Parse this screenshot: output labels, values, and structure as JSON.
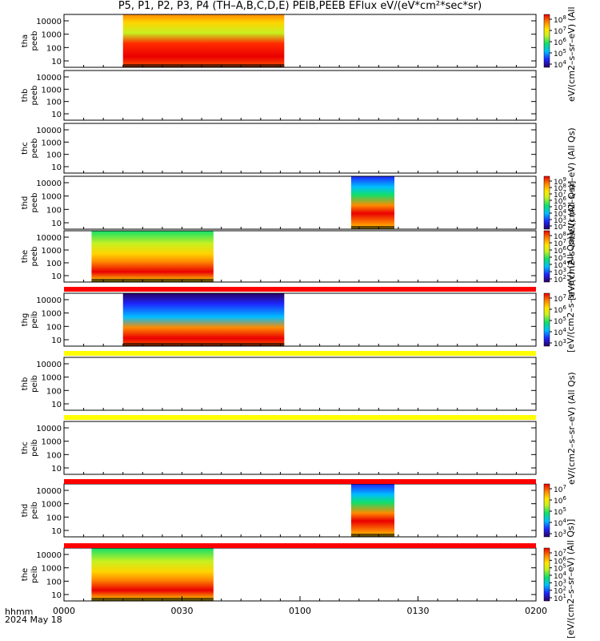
{
  "title": "P5, P1, P2, P3, P4 (TH–A,B,C,D,E) PEIB,PEEB EFlux eV/(eV*cm²*sec*sr)",
  "units_labels": [
    "eV/(cm2–s–sr–eV) (All",
    "[eV/(cm2–s–sr–eV) (All Qs)]",
    "eV/(cm2–s–sr–eV) (All Qs)",
    "[eV/(cm2–s–sr–eV) (All Qs)]",
    "eV/(cm2–s–sr–eV) (All Qs)",
    "[eV/(cm2–s–sr–eV) (All Qs)]"
  ],
  "time_axis": {
    "label": "hhmm",
    "date": "2024 May 18",
    "ticks": [
      "0000",
      "0030",
      "0100",
      "0130",
      "0200"
    ]
  },
  "colors": {
    "quality_bar_red": "#ff0000",
    "quality_bar_yellow": "#ffff00",
    "frame": "#000000"
  },
  "chart_data": [
    {
      "type": "heatmap",
      "panel": "tha peeb",
      "ylabel_top": "tha",
      "ylabel_bottom": "peeb",
      "yticks": [
        "10000",
        "1000",
        "100",
        "10"
      ],
      "data_windows": [
        [
          "0015",
          "0056"
        ]
      ],
      "colorbar_ticks": [
        "10^8",
        "10^7",
        "10^6",
        "10^5",
        "10^4"
      ]
    },
    {
      "type": "heatmap",
      "panel": "thb peeb",
      "ylabel_top": "thb",
      "ylabel_bottom": "peeb",
      "yticks": [
        "10000",
        "1000",
        "100",
        "10"
      ],
      "data_windows": []
    },
    {
      "type": "heatmap",
      "panel": "thc peeb",
      "ylabel_top": "thc",
      "ylabel_bottom": "peeb",
      "yticks": [
        "10000",
        "1000",
        "100",
        "10"
      ],
      "data_windows": []
    },
    {
      "type": "heatmap",
      "panel": "thd peeb",
      "ylabel_top": "thd",
      "ylabel_bottom": "peeb",
      "yticks": [
        "10000",
        "1000",
        "100",
        "10"
      ],
      "data_windows": [
        [
          "0113",
          "0124"
        ]
      ],
      "colorbar_ticks": [
        "10^9",
        "10^8",
        "10^7",
        "10^6",
        "10^5",
        "10^4",
        "10^3",
        "10^2"
      ]
    },
    {
      "type": "heatmap",
      "panel": "the peeb",
      "ylabel_top": "the",
      "ylabel_bottom": "peeb",
      "yticks": [
        "10000",
        "1000",
        "100",
        "10"
      ],
      "data_windows": [
        [
          "0007",
          "0038"
        ]
      ],
      "colorbar_ticks": [
        "10^8",
        "10^7",
        "10^6",
        "10^5",
        "10^4",
        "10^3",
        "10^2"
      ]
    },
    {
      "type": "heatmap",
      "panel": "thg peib",
      "ylabel_top": "thg",
      "ylabel_bottom": "peib",
      "yticks": [
        "10000",
        "1000",
        "100",
        "10"
      ],
      "data_windows": [
        [
          "0015",
          "0056"
        ]
      ],
      "colorbar_ticks": [
        "10^7",
        "10^6",
        "10^5",
        "10^4",
        "10^3"
      ]
    },
    {
      "type": "heatmap",
      "panel": "thb peib",
      "ylabel_top": "thb",
      "ylabel_bottom": "peib",
      "yticks": [
        "10000",
        "1000",
        "100",
        "10"
      ],
      "data_windows": []
    },
    {
      "type": "heatmap",
      "panel": "thc peib",
      "ylabel_top": "thc",
      "ylabel_bottom": "peib",
      "yticks": [
        "10000",
        "1000",
        "100",
        "10"
      ],
      "data_windows": []
    },
    {
      "type": "heatmap",
      "panel": "thd peib",
      "ylabel_top": "thd",
      "ylabel_bottom": "peib",
      "yticks": [
        "10000",
        "1000",
        "100",
        "10"
      ],
      "data_windows": [
        [
          "0113",
          "0124"
        ]
      ],
      "colorbar_ticks": [
        "10^7",
        "10^6",
        "10^5",
        "10^4",
        "10^3"
      ]
    },
    {
      "type": "heatmap",
      "panel": "the peib",
      "ylabel_top": "the",
      "ylabel_bottom": "peib",
      "yticks": [
        "10000",
        "1000",
        "100",
        "10"
      ],
      "data_windows": [
        [
          "0007",
          "0038"
        ]
      ],
      "colorbar_ticks": [
        "10^7",
        "10^6",
        "10^5",
        "10^4",
        "10^3",
        "10^2",
        "10^1"
      ]
    }
  ],
  "quality_bars": [
    {
      "after_panel": "the peeb",
      "color": "red"
    },
    {
      "after_panel": "thg peib",
      "color": "yellow"
    },
    {
      "after_panel": "thb peib",
      "color": "yellow"
    },
    {
      "after_panel": "thc peib",
      "color": "red"
    },
    {
      "after_panel": "thd peib",
      "color": "red"
    }
  ]
}
